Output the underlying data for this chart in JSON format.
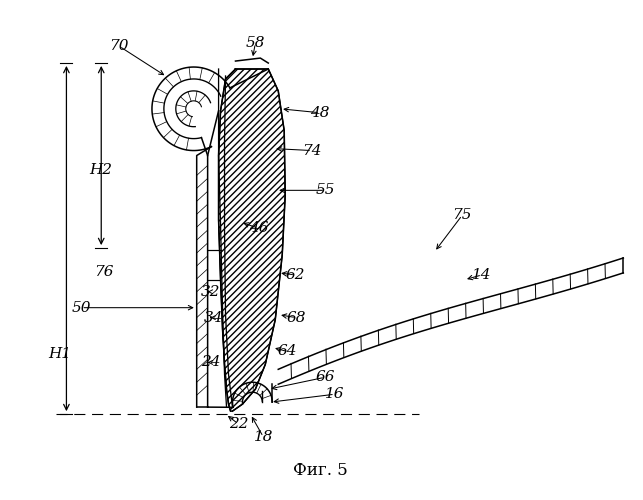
{
  "background_color": "#ffffff",
  "fig_label": "Фиг. 5",
  "lw": 1.1
}
